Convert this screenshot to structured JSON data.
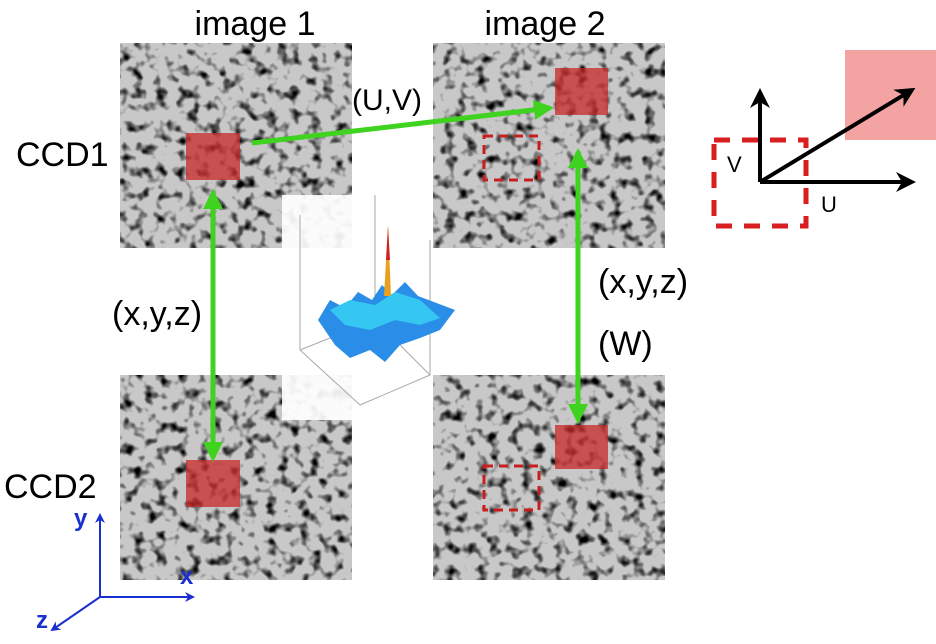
{
  "header": {
    "image1": "image 1",
    "image2": "image 2"
  },
  "rows": {
    "ccd1": "CCD1",
    "ccd2": "CCD2"
  },
  "labels": {
    "uv": "(U,V)",
    "xyz_left": "(x,y,z)",
    "xyz_right": "(x,y,z)",
    "w": "(W)"
  },
  "inset": {
    "v": "V",
    "u": "U"
  },
  "axes": {
    "y": "y",
    "x": "x",
    "z": "z"
  }
}
